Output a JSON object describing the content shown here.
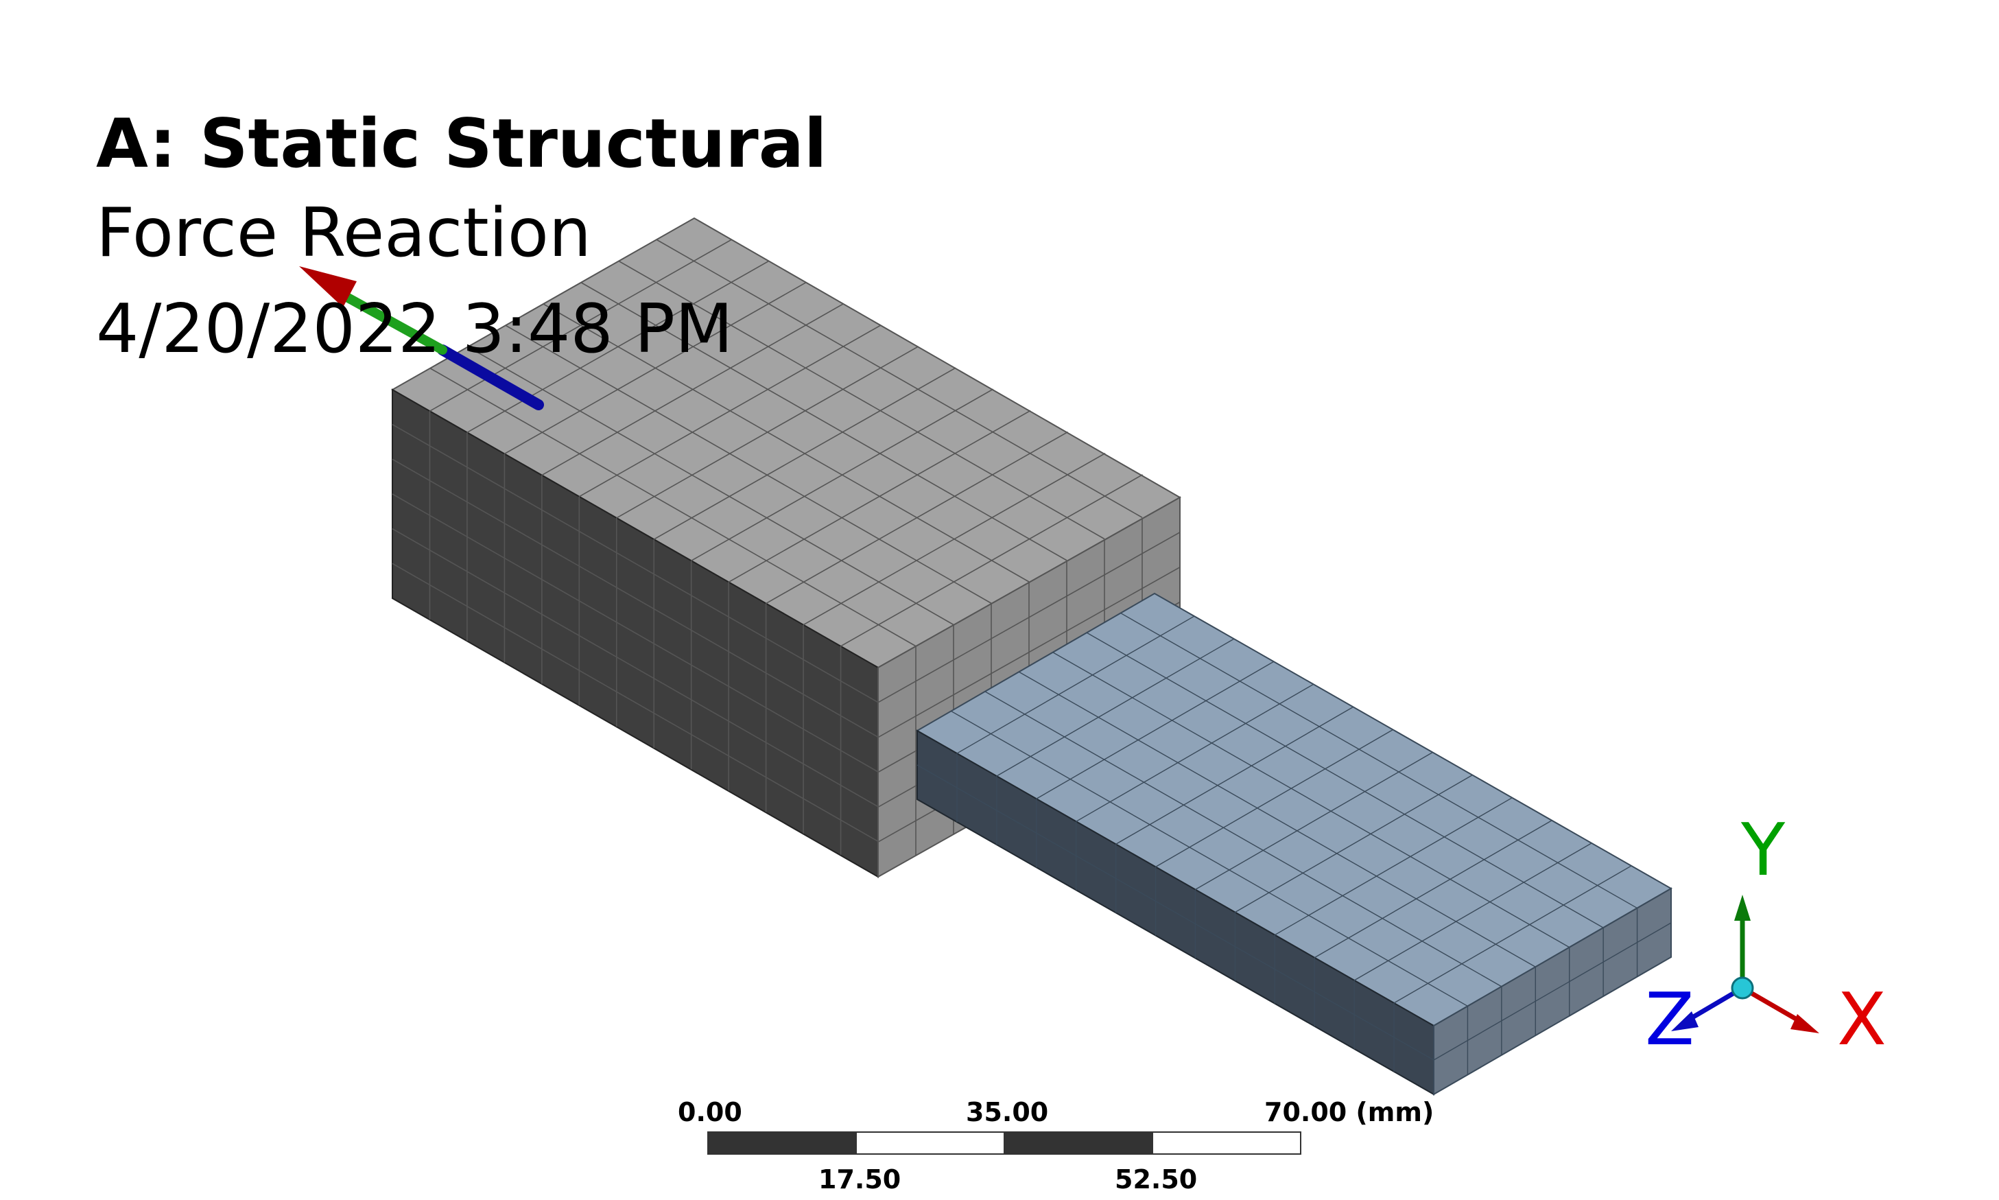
{
  "viewport": {
    "title": "A: Static Structural",
    "result_label": "Force Reaction",
    "timestamp": "4/20/2022 3:48 PM"
  },
  "scale_bar": {
    "top_labels": [
      "0.00",
      "35.00",
      "70.00 (mm)"
    ],
    "bottom_labels": [
      "17.50",
      "52.50"
    ]
  },
  "triad": {
    "x_label": "X",
    "y_label": "Y",
    "z_label": "Z"
  },
  "colors": {
    "x_axis": "#e00000",
    "y_axis": "#00a000",
    "z_axis": "#0000e0",
    "block_top": "#a3a3a3",
    "block_side": "#3e3e3e",
    "block_front": "#8c8c8c",
    "plate_top": "#8fa3b8",
    "plate_side": "#3a4552",
    "plate_end": "#6a7786"
  }
}
